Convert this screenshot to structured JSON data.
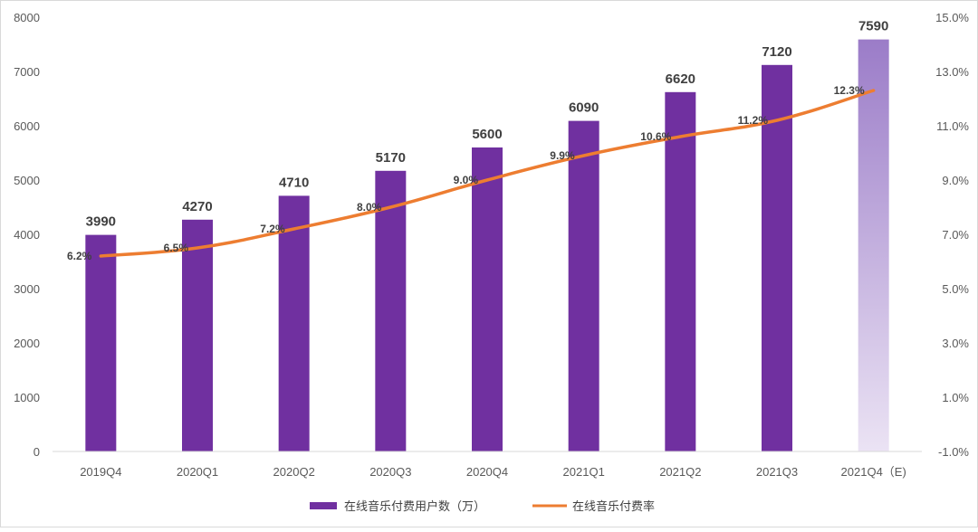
{
  "chart_data": {
    "type": "bar+line",
    "categories": [
      "2019Q4",
      "2020Q1",
      "2020Q2",
      "2020Q3",
      "2020Q4",
      "2021Q1",
      "2021Q2",
      "2021Q3",
      "2021Q4（E)"
    ],
    "series": [
      {
        "name": "在线音乐付费用户数（万）",
        "type": "bar",
        "axis": "left",
        "color": "#7030a0",
        "estimate_color": "#b9a4d8",
        "values": [
          3990,
          4270,
          4710,
          5170,
          5600,
          6090,
          6620,
          7120,
          7590
        ],
        "labels": [
          "3990",
          "4270",
          "4710",
          "5170",
          "5600",
          "6090",
          "6620",
          "7120",
          "7590"
        ]
      },
      {
        "name": "在线音乐付费率",
        "type": "line",
        "axis": "right",
        "color": "#ed7d31",
        "values": [
          6.2,
          6.5,
          7.2,
          8.0,
          9.0,
          9.9,
          10.6,
          11.2,
          12.3
        ],
        "labels": [
          "6.2%",
          "6.5%",
          "7.2%",
          "8.0%",
          "9.0%",
          "9.9%",
          "10.6%",
          "11.2%",
          "12.3%"
        ]
      }
    ],
    "y_left": {
      "min": 0,
      "max": 8000,
      "ticks": [
        "0",
        "1000",
        "2000",
        "3000",
        "4000",
        "5000",
        "6000",
        "7000",
        "8000"
      ]
    },
    "y_right": {
      "min": -1.0,
      "max": 15.0,
      "ticks": [
        "-1.0%",
        "1.0%",
        "3.0%",
        "5.0%",
        "7.0%",
        "9.0%",
        "11.0%",
        "13.0%",
        "15.0%"
      ]
    },
    "legend": {
      "position": "bottom",
      "items": [
        "在线音乐付费用户数（万）",
        "在线音乐付费率"
      ]
    },
    "grid": false
  }
}
